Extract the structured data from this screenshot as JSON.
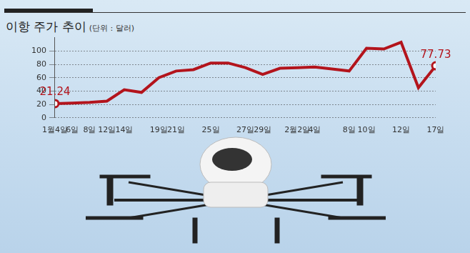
{
  "chart_data": {
    "type": "line",
    "title": "이항 주가 추이",
    "subtitle": "(단위 : 달러)",
    "categories": [
      "1월4일",
      "6일",
      "8일",
      "12일",
      "14일",
      null,
      "19일",
      "21일",
      null,
      "25일",
      null,
      "27일",
      "29일",
      null,
      "2월2일",
      "4일",
      null,
      "8일",
      "10일",
      null,
      "12일",
      null,
      "17일"
    ],
    "values": [
      21.24,
      22,
      23,
      25,
      42,
      38,
      60,
      70,
      72,
      82,
      82,
      75,
      65,
      74,
      75,
      76,
      73,
      70,
      104,
      103,
      113,
      45,
      77.73
    ],
    "value_labels": [
      "21.24",
      null,
      null,
      null,
      null,
      null,
      null,
      null,
      null,
      null,
      null,
      null,
      null,
      null,
      null,
      null,
      null,
      null,
      null,
      null,
      null,
      null,
      "77.73"
    ],
    "color": "#b3141c",
    "marker": "circle",
    "ylim": [
      0,
      120
    ],
    "yticks": [
      0,
      20,
      40,
      60,
      80,
      100
    ],
    "grid": true
  }
}
